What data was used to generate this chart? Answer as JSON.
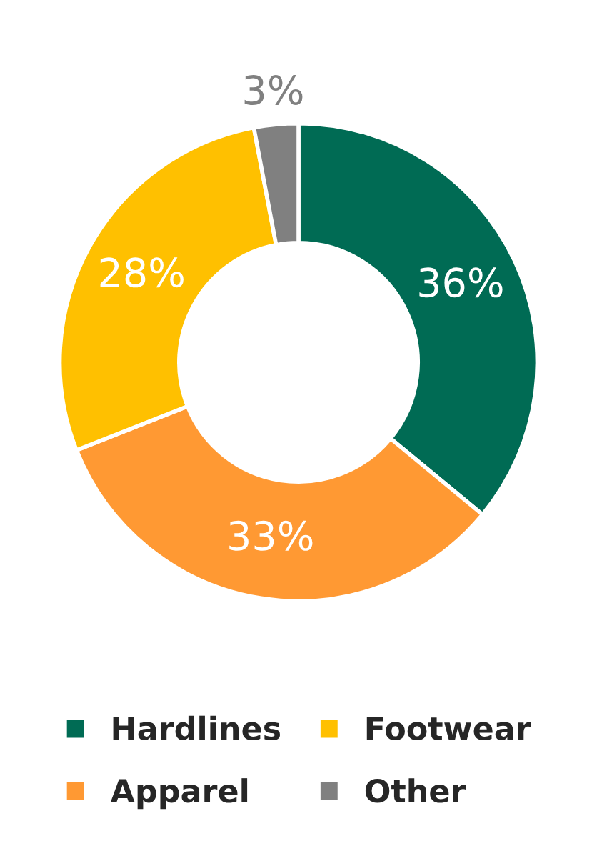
{
  "chart_data": {
    "type": "donut",
    "categories": [
      "Hardlines",
      "Apparel",
      "Footwear",
      "Other"
    ],
    "values": [
      36,
      33,
      28,
      3
    ],
    "colors": [
      "#006b54",
      "#ff9933",
      "#ffc000",
      "#808080"
    ],
    "value_labels": [
      "36%",
      "33%",
      "28%",
      "3%"
    ],
    "legend": "bottom"
  }
}
